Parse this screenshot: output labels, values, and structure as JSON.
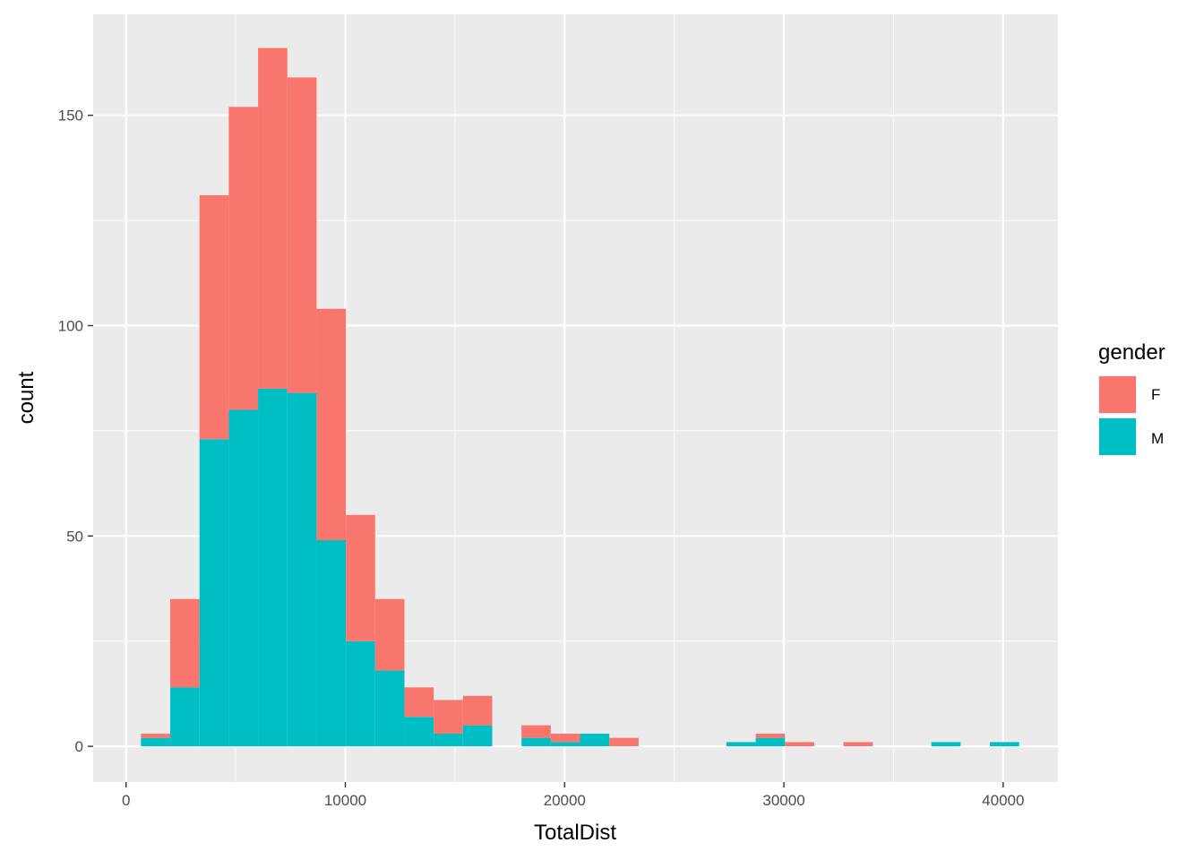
{
  "chart_data": {
    "type": "bar",
    "subtype": "stacked-histogram",
    "xlabel": "TotalDist",
    "ylabel": "count",
    "xlim": [
      -1500,
      42500
    ],
    "ylim": [
      -8.5,
      174
    ],
    "x_ticks": [
      0,
      10000,
      20000,
      30000,
      40000
    ],
    "x_tick_labels": [
      "0",
      "10000",
      "20000",
      "30000",
      "40000"
    ],
    "y_ticks": [
      0,
      50,
      100,
      150
    ],
    "y_tick_labels": [
      "0",
      "50",
      "100",
      "150"
    ],
    "grid": true,
    "panel_background": "#ebebeb",
    "bin_width": 1335,
    "bins": [
      {
        "x0": 680,
        "x1": 2015,
        "F": 1,
        "M": 2
      },
      {
        "x0": 2015,
        "x1": 3350,
        "F": 21,
        "M": 14
      },
      {
        "x0": 3350,
        "x1": 4685,
        "F": 58,
        "M": 73
      },
      {
        "x0": 4685,
        "x1": 6020,
        "F": 72,
        "M": 80
      },
      {
        "x0": 6020,
        "x1": 7355,
        "F": 81,
        "M": 85
      },
      {
        "x0": 7355,
        "x1": 8690,
        "F": 75,
        "M": 84
      },
      {
        "x0": 8690,
        "x1": 10025,
        "F": 55,
        "M": 49
      },
      {
        "x0": 10025,
        "x1": 11360,
        "F": 30,
        "M": 25
      },
      {
        "x0": 11360,
        "x1": 12695,
        "F": 17,
        "M": 18
      },
      {
        "x0": 12695,
        "x1": 14030,
        "F": 7,
        "M": 7
      },
      {
        "x0": 14030,
        "x1": 15365,
        "F": 8,
        "M": 3
      },
      {
        "x0": 15365,
        "x1": 16700,
        "F": 7,
        "M": 5
      },
      {
        "x0": 18035,
        "x1": 19370,
        "F": 3,
        "M": 2
      },
      {
        "x0": 19370,
        "x1": 20705,
        "F": 2,
        "M": 1
      },
      {
        "x0": 20705,
        "x1": 22040,
        "F": 0,
        "M": 3
      },
      {
        "x0": 22040,
        "x1": 23375,
        "F": 2,
        "M": 0
      },
      {
        "x0": 27380,
        "x1": 28715,
        "F": 0,
        "M": 1
      },
      {
        "x0": 28715,
        "x1": 30050,
        "F": 1,
        "M": 2
      },
      {
        "x0": 30050,
        "x1": 31385,
        "F": 1,
        "M": 0
      },
      {
        "x0": 32720,
        "x1": 34055,
        "F": 1,
        "M": 0
      },
      {
        "x0": 36725,
        "x1": 38060,
        "F": 0,
        "M": 1
      },
      {
        "x0": 39395,
        "x1": 40730,
        "F": 0,
        "M": 1
      }
    ],
    "series": [
      {
        "name": "F",
        "color": "#f8766d"
      },
      {
        "name": "M",
        "color": "#00bfc4"
      }
    ],
    "legend": {
      "title": "gender",
      "placement": "right",
      "items": [
        {
          "label": "F",
          "color": "#f8766d"
        },
        {
          "label": "M",
          "color": "#00bfc4"
        }
      ]
    }
  }
}
